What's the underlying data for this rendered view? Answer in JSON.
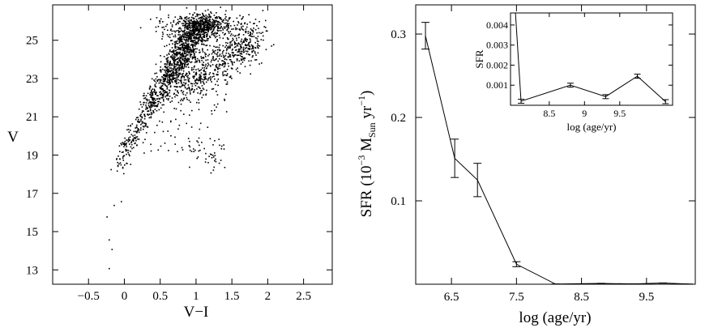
{
  "chart_data": [
    {
      "type": "scatter",
      "title": "",
      "xlabel": "V−I",
      "ylabel": "V",
      "xlim": [
        -1.0,
        2.9
      ],
      "ylim": [
        26.85,
        12.25
      ],
      "y_inverted": true,
      "grid": false,
      "xticks": [
        -0.5,
        0,
        0.5,
        1,
        1.5,
        2,
        2.5
      ],
      "xtick_labels": [
        "−0.5",
        "0",
        "0.5",
        "1",
        "1.5",
        "2",
        "2.5"
      ],
      "yticks": [
        13,
        15,
        17,
        19,
        21,
        23,
        25
      ],
      "ytick_labels": [
        "13",
        "15",
        "17",
        "19",
        "21",
        "23",
        "25"
      ],
      "main_sequence_ridge": [
        [
          -0.2,
          13.1
        ],
        [
          -0.1,
          17.9
        ],
        [
          0.05,
          19.6
        ],
        [
          0.3,
          21.4
        ],
        [
          0.55,
          22.7
        ],
        [
          0.7,
          23.6
        ],
        [
          0.85,
          24.6
        ],
        [
          1.0,
          25.5
        ],
        [
          1.15,
          26.1
        ]
      ],
      "red_giant_clump": [
        [
          0.95,
          19.4
        ],
        [
          1.05,
          19.3
        ],
        [
          1.15,
          19.0
        ],
        [
          1.22,
          18.9
        ],
        [
          1.3,
          18.6
        ]
      ],
      "bright_stars": [
        [
          -0.22,
          13.1
        ],
        [
          -0.18,
          14.1
        ],
        [
          -0.22,
          14.6
        ],
        [
          -0.25,
          15.8
        ],
        [
          -0.15,
          16.4
        ],
        [
          -0.05,
          16.6
        ],
        [
          1.2,
          18.1
        ],
        [
          0.9,
          18.4
        ],
        [
          1.35,
          19.5
        ],
        [
          0.5,
          19.5
        ],
        [
          0.7,
          19.6
        ],
        [
          0.3,
          20.2
        ]
      ]
    },
    {
      "type": "line",
      "title": "",
      "xlabel": "log (age/yr)",
      "ylabel": "SFR (10⁻³ M_Sun yr⁻¹)",
      "ylabel_parts": {
        "prefix": "SFR (10",
        "exp1": "−3",
        "mid": " M",
        "sub": "Sun",
        "mid2": " yr",
        "exp2": "−1",
        "suffix": ")"
      },
      "xlim": [
        5.95,
        10.25
      ],
      "ylim": [
        0.0,
        0.335
      ],
      "grid": false,
      "xticks": [
        6.5,
        7.5,
        8.5,
        9.5
      ],
      "xtick_labels": [
        "6.5",
        "7.5",
        "8.5",
        "9.5"
      ],
      "yticks": [
        0.1,
        0.2,
        0.3
      ],
      "ytick_labels": [
        "0.1",
        "0.2",
        "0.3"
      ],
      "x": [
        6.1,
        6.55,
        6.9,
        7.5,
        8.1,
        8.8,
        9.3,
        9.75,
        10.15
      ],
      "y": [
        0.298,
        0.151,
        0.125,
        0.024,
        0.0002,
        0.001,
        0.00043,
        0.00145,
        0.00018
      ],
      "err": [
        0.016,
        0.023,
        0.02,
        0.003,
        0.0001,
        0.0001,
        0.0001,
        0.0001,
        0.0001
      ]
    },
    {
      "type": "line",
      "title": "",
      "xlabel": "log (age/yr)",
      "ylabel": "SFR",
      "xlim": [
        7.95,
        10.25
      ],
      "ylim": [
        0.0,
        0.0046
      ],
      "grid": false,
      "xticks": [
        8.5,
        9,
        9.5
      ],
      "xtick_labels": [
        "8.5",
        "9",
        "9.5"
      ],
      "yticks": [
        0.001,
        0.002,
        0.003,
        0.004
      ],
      "ytick_labels": [
        "0.001",
        "0.002",
        "0.003",
        "0.004"
      ],
      "x": [
        8.1,
        8.8,
        9.3,
        9.75,
        10.15
      ],
      "y": [
        0.0002,
        0.001,
        0.00043,
        0.00145,
        0.00018
      ],
      "err": [
        0.0001,
        0.0001,
        0.0001,
        0.0001,
        0.0001
      ]
    }
  ]
}
